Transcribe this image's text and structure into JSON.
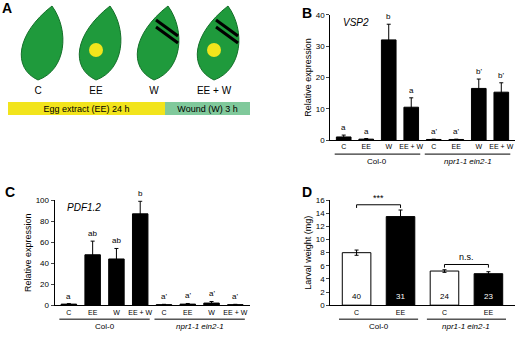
{
  "diagram": {
    "panel": "A",
    "leaves": [
      {
        "label": "C",
        "egg": false,
        "wound": false
      },
      {
        "label": "EE",
        "egg": true,
        "wound": false
      },
      {
        "label": "W",
        "egg": false,
        "wound": true
      },
      {
        "label": "EE + W",
        "egg": true,
        "wound": true
      }
    ],
    "timeline": [
      {
        "text": "Egg extract (EE) 24 h",
        "color": "#f2e41c"
      },
      {
        "text": "Wound (W) 3 h",
        "color": "#80c99b"
      }
    ]
  },
  "chart_data": [
    {
      "panel": "B",
      "type": "bar",
      "title": "VSP2",
      "y_label": "Relative expression",
      "categories": [
        "C",
        "EE",
        "W",
        "EE + W",
        "C",
        "EE",
        "W",
        "EE + W"
      ],
      "groups": [
        "Col-0",
        "npr1-1 ein2-1"
      ],
      "values": [
        1,
        0.3,
        32,
        10.5,
        0.2,
        0.2,
        16.5,
        15.3
      ],
      "errors": [
        0.6,
        0.2,
        5,
        3,
        0.1,
        0.1,
        3,
        3
      ],
      "significance": [
        "a",
        "a",
        "b",
        "a",
        "a'",
        "a'",
        "b'",
        "b'"
      ],
      "color": "#000000",
      "ylim": [
        0,
        40
      ],
      "yticks": [
        0,
        10,
        20,
        30,
        40
      ],
      "grid": false
    },
    {
      "panel": "C",
      "type": "bar",
      "title": "PDF1.2",
      "y_label": "Relative expression",
      "categories": [
        "C",
        "EE",
        "W",
        "EE + W",
        "C",
        "EE",
        "W",
        "EE + W"
      ],
      "groups": [
        "Col-0",
        "npr1-1 ein2-1"
      ],
      "values": [
        1,
        48,
        44,
        87,
        0.5,
        1,
        2,
        0.5
      ],
      "errors": [
        0.5,
        13,
        10,
        12,
        0.3,
        0.6,
        1.5,
        0.3
      ],
      "significance": [
        "a",
        "ab",
        "ab",
        "b",
        "a'",
        "a'",
        "a'",
        "a'"
      ],
      "color": "#000000",
      "ylim": [
        0,
        100
      ],
      "yticks": [
        0,
        20,
        40,
        60,
        80,
        100
      ],
      "grid": false
    },
    {
      "panel": "D",
      "type": "bar",
      "y_label": "Larval weight (mg)",
      "categories": [
        "C",
        "EE",
        "C",
        "EE"
      ],
      "groups": [
        "Col-0",
        "npr1-1 ein2-1"
      ],
      "values": [
        8,
        13.5,
        5.2,
        4.8
      ],
      "errors": [
        0.4,
        1,
        0.2,
        0.3
      ],
      "sample_sizes": [
        40,
        31,
        24,
        23
      ],
      "comparisons": [
        {
          "pair": [
            0,
            1
          ],
          "text": "***"
        },
        {
          "pair": [
            2,
            3
          ],
          "text": "n.s."
        }
      ],
      "colors": [
        "#ffffff",
        "#000000",
        "#ffffff",
        "#000000"
      ],
      "ylim": [
        0,
        16
      ],
      "yticks": [
        0,
        2,
        4,
        6,
        8,
        10,
        12,
        14,
        16
      ],
      "grid": false
    }
  ]
}
